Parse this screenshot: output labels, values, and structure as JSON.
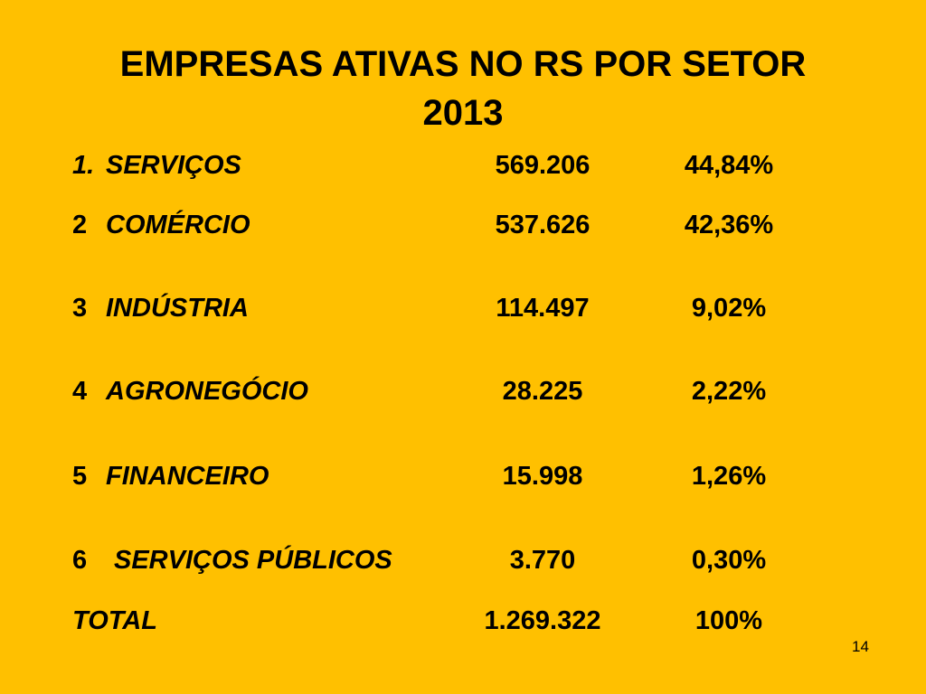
{
  "slide": {
    "title_line1": "EMPRESAS ATIVAS NO RS POR SETOR",
    "title_line2": "2013",
    "page_number": "14"
  },
  "rows": [
    {
      "num": "1.",
      "label": "SERVIÇOS",
      "count": "569.206",
      "pct": "44,84%"
    },
    {
      "num": "2",
      "label": "COMÉRCIO",
      "count": "537.626",
      "pct": "42,36%"
    },
    {
      "num": "3",
      "label": "INDÚSTRIA",
      "count": "114.497",
      "pct": "9,02%"
    },
    {
      "num": "4",
      "label": "AGRONEGÓCIO",
      "count": "28.225",
      "pct": "2,22%"
    },
    {
      "num": "5",
      "label": "FINANCEIRO",
      "count": "15.998",
      "pct": "1,26%"
    },
    {
      "num": "6",
      "label": "SERVIÇOS PÚBLICOS",
      "count": "3.770",
      "pct": "0,30%"
    }
  ],
  "total": {
    "label": "TOTAL",
    "count": "1.269.322",
    "pct": "100%"
  }
}
